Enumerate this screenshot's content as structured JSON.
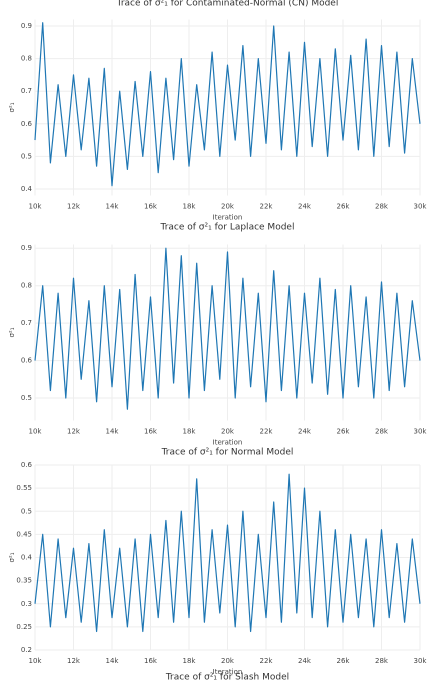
{
  "chart_data": [
    {
      "type": "line",
      "title": "Trace of σ²₁ for Contaminated-Normal (CN) Model",
      "xlabel": "Iteration",
      "ylabel": "σ²₁",
      "x": [
        10000,
        10400,
        10800,
        11200,
        11600,
        12000,
        12400,
        12800,
        13200,
        13600,
        14000,
        14400,
        14800,
        15200,
        15600,
        16000,
        16400,
        16800,
        17200,
        17600,
        18000,
        18400,
        18800,
        19200,
        19600,
        20000,
        20400,
        20800,
        21200,
        21600,
        22000,
        22400,
        22800,
        23200,
        23600,
        24000,
        24400,
        24800,
        25200,
        25600,
        26000,
        26400,
        26800,
        27200,
        27600,
        28000,
        28400,
        28800,
        29200,
        29600,
        30000
      ],
      "series": [
        {
          "color": "#1f77b4",
          "values": [
            0.55,
            0.91,
            0.48,
            0.72,
            0.5,
            0.75,
            0.52,
            0.74,
            0.47,
            0.77,
            0.41,
            0.7,
            0.46,
            0.73,
            0.5,
            0.76,
            0.45,
            0.74,
            0.49,
            0.8,
            0.47,
            0.72,
            0.52,
            0.82,
            0.5,
            0.78,
            0.55,
            0.84,
            0.5,
            0.8,
            0.54,
            0.9,
            0.52,
            0.82,
            0.5,
            0.85,
            0.53,
            0.8,
            0.5,
            0.83,
            0.55,
            0.81,
            0.52,
            0.86,
            0.5,
            0.84,
            0.53,
            0.82,
            0.51,
            0.8,
            0.6
          ]
        }
      ],
      "xlim": [
        10000,
        30000
      ],
      "xticks": [
        {
          "value": 10000,
          "label": "10k"
        },
        {
          "value": 12000,
          "label": "12k"
        },
        {
          "value": 14000,
          "label": "14k"
        },
        {
          "value": 16000,
          "label": "16k"
        },
        {
          "value": 18000,
          "label": "18k"
        },
        {
          "value": 20000,
          "label": "20k"
        },
        {
          "value": 22000,
          "label": "22k"
        },
        {
          "value": 24000,
          "label": "24k"
        },
        {
          "value": 26000,
          "label": "26k"
        },
        {
          "value": 28000,
          "label": "28k"
        },
        {
          "value": 30000,
          "label": "30k"
        }
      ],
      "ylim": [
        0.38,
        0.92
      ],
      "yticks": [
        0.4,
        0.5,
        0.6,
        0.7,
        0.8,
        0.9
      ],
      "grid": true
    },
    {
      "type": "line",
      "title": "Trace of σ²₁ for Laplace Model",
      "xlabel": "Iteration",
      "ylabel": "σ²₁",
      "x": [
        10000,
        10400,
        10800,
        11200,
        11600,
        12000,
        12400,
        12800,
        13200,
        13600,
        14000,
        14400,
        14800,
        15200,
        15600,
        16000,
        16400,
        16800,
        17200,
        17600,
        18000,
        18400,
        18800,
        19200,
        19600,
        20000,
        20400,
        20800,
        21200,
        21600,
        22000,
        22400,
        22800,
        23200,
        23600,
        24000,
        24400,
        24800,
        25200,
        25600,
        26000,
        26400,
        26800,
        27200,
        27600,
        28000,
        28400,
        28800,
        29200,
        29600,
        30000
      ],
      "series": [
        {
          "color": "#1f77b4",
          "values": [
            0.6,
            0.8,
            0.52,
            0.78,
            0.5,
            0.82,
            0.55,
            0.76,
            0.49,
            0.8,
            0.53,
            0.79,
            0.47,
            0.83,
            0.52,
            0.77,
            0.5,
            0.9,
            0.54,
            0.88,
            0.5,
            0.86,
            0.52,
            0.8,
            0.55,
            0.89,
            0.5,
            0.82,
            0.53,
            0.78,
            0.49,
            0.84,
            0.52,
            0.8,
            0.5,
            0.78,
            0.54,
            0.82,
            0.51,
            0.79,
            0.5,
            0.8,
            0.53,
            0.77,
            0.5,
            0.81,
            0.52,
            0.78,
            0.53,
            0.76,
            0.6
          ]
        }
      ],
      "xlim": [
        10000,
        30000
      ],
      "xticks": [
        {
          "value": 10000,
          "label": "10k"
        },
        {
          "value": 12000,
          "label": "12k"
        },
        {
          "value": 14000,
          "label": "14k"
        },
        {
          "value": 16000,
          "label": "16k"
        },
        {
          "value": 18000,
          "label": "18k"
        },
        {
          "value": 20000,
          "label": "20k"
        },
        {
          "value": 22000,
          "label": "22k"
        },
        {
          "value": 24000,
          "label": "24k"
        },
        {
          "value": 26000,
          "label": "26k"
        },
        {
          "value": 28000,
          "label": "28k"
        },
        {
          "value": 30000,
          "label": "30k"
        }
      ],
      "ylim": [
        0.44,
        0.91
      ],
      "yticks": [
        0.5,
        0.6,
        0.7,
        0.8,
        0.9
      ],
      "grid": true
    },
    {
      "type": "line",
      "title": "Trace of σ²₁ for Normal Model",
      "xlabel": "Iteration",
      "ylabel": "σ²₁",
      "x": [
        10000,
        10400,
        10800,
        11200,
        11600,
        12000,
        12400,
        12800,
        13200,
        13600,
        14000,
        14400,
        14800,
        15200,
        15600,
        16000,
        16400,
        16800,
        17200,
        17600,
        18000,
        18400,
        18800,
        19200,
        19600,
        20000,
        20400,
        20800,
        21200,
        21600,
        22000,
        22400,
        22800,
        23200,
        23600,
        24000,
        24400,
        24800,
        25200,
        25600,
        26000,
        26400,
        26800,
        27200,
        27600,
        28000,
        28400,
        28800,
        29200,
        29600,
        30000
      ],
      "series": [
        {
          "color": "#1f77b4",
          "values": [
            0.3,
            0.45,
            0.25,
            0.44,
            0.27,
            0.42,
            0.26,
            0.43,
            0.24,
            0.46,
            0.27,
            0.42,
            0.25,
            0.44,
            0.24,
            0.45,
            0.27,
            0.48,
            0.26,
            0.5,
            0.27,
            0.57,
            0.26,
            0.46,
            0.28,
            0.47,
            0.25,
            0.5,
            0.24,
            0.45,
            0.27,
            0.52,
            0.26,
            0.58,
            0.28,
            0.55,
            0.27,
            0.5,
            0.25,
            0.46,
            0.26,
            0.45,
            0.27,
            0.44,
            0.25,
            0.46,
            0.27,
            0.43,
            0.26,
            0.44,
            0.3
          ]
        }
      ],
      "xlim": [
        10000,
        30000
      ],
      "xticks": [
        {
          "value": 10000,
          "label": "10k"
        },
        {
          "value": 12000,
          "label": "12k"
        },
        {
          "value": 14000,
          "label": "14k"
        },
        {
          "value": 16000,
          "label": "16k"
        },
        {
          "value": 18000,
          "label": "18k"
        },
        {
          "value": 20000,
          "label": "20k"
        },
        {
          "value": 22000,
          "label": "22k"
        },
        {
          "value": 24000,
          "label": "24k"
        },
        {
          "value": 26000,
          "label": "26k"
        },
        {
          "value": 28000,
          "label": "28k"
        },
        {
          "value": 30000,
          "label": "30k"
        }
      ],
      "ylim": [
        0.2,
        0.6
      ],
      "yticks": [
        0.2,
        0.25,
        0.3,
        0.35,
        0.4,
        0.45,
        0.5,
        0.55,
        0.6
      ],
      "grid": true
    },
    {
      "type": "line",
      "title": "Trace of σ²₁ for Slash Model"
    }
  ]
}
